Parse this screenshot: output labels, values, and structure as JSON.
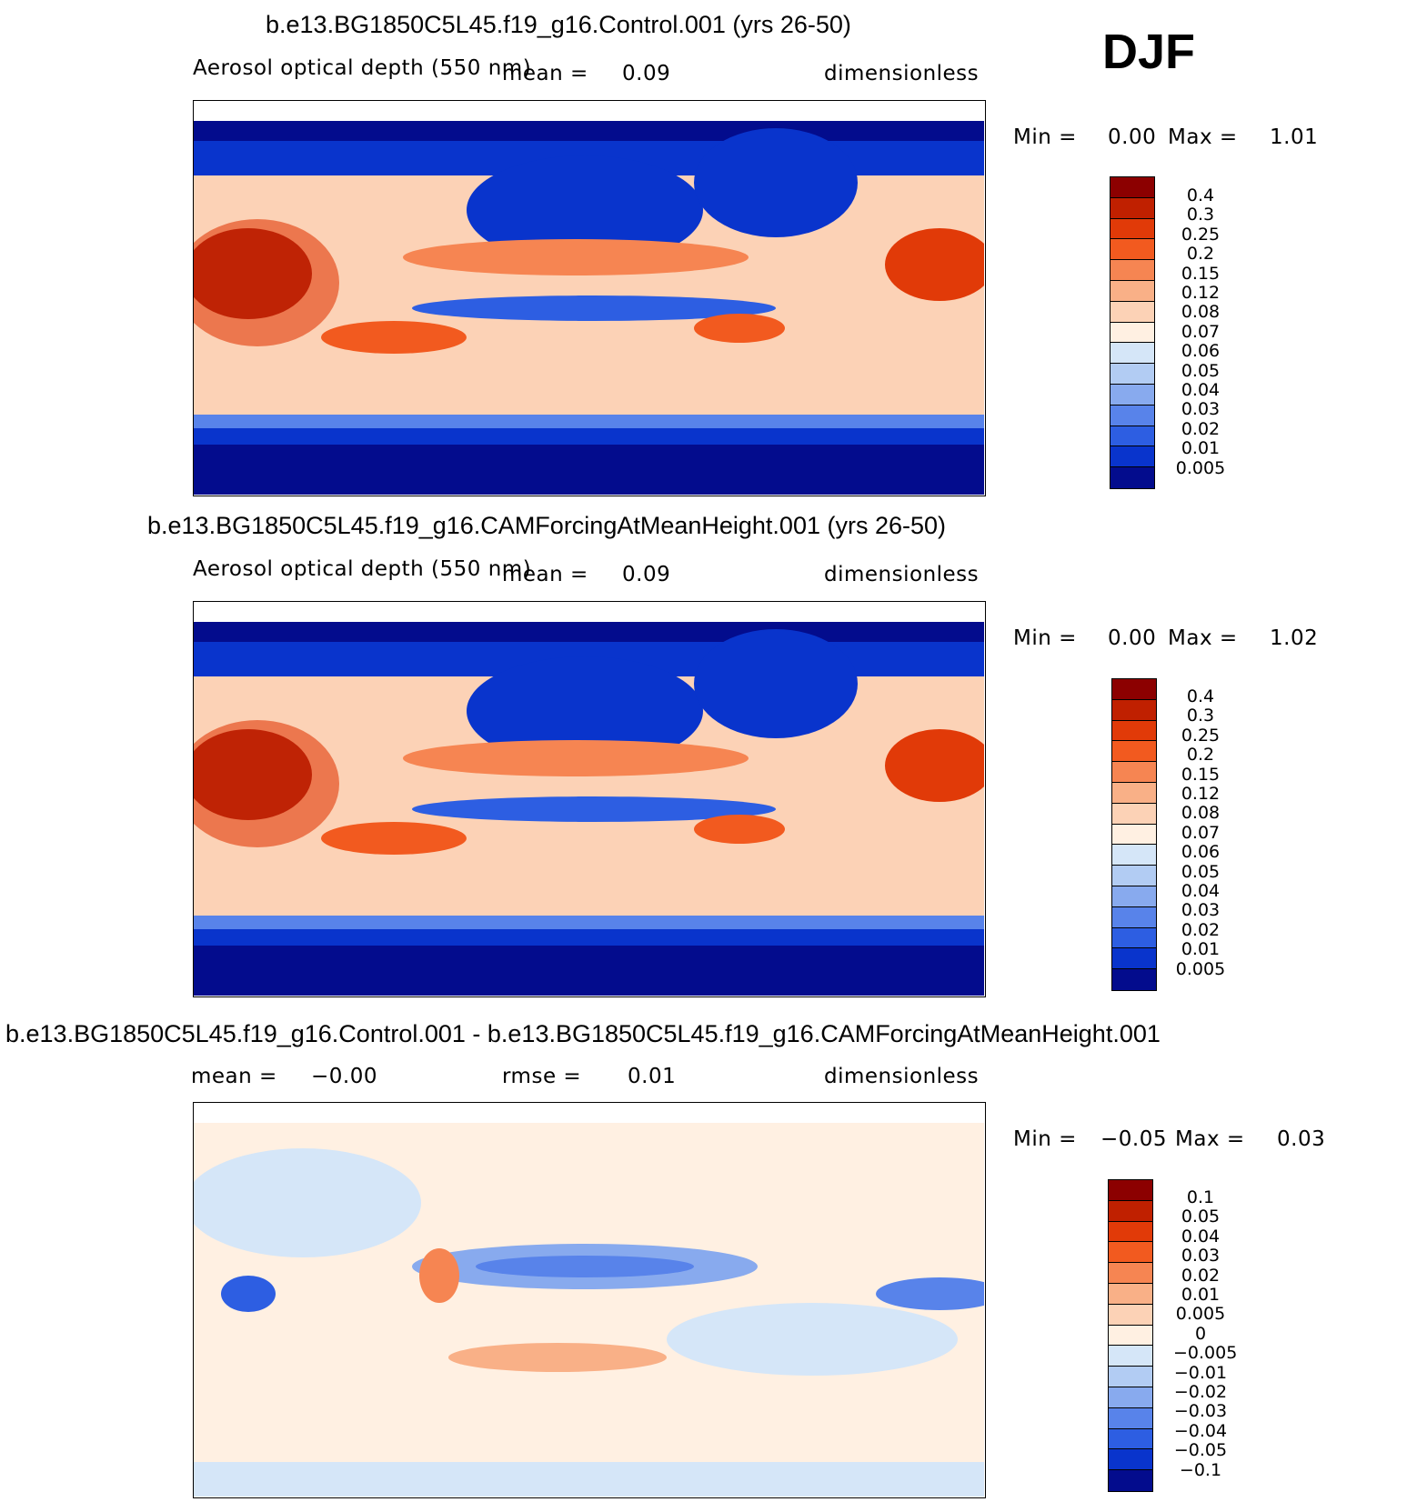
{
  "season": "DJF",
  "chart_data": [
    {
      "type": "heatmap",
      "title": "b.e13.BG1850C5L45.f19_g16.Control.001 (yrs 26-50)",
      "variable": "Aerosol optical depth (550 nm)",
      "mean_label": "mean =",
      "mean_value": "0.09",
      "units": "dimensionless",
      "min_label": "Min =",
      "min_value": "0.00",
      "max_label": "Max =",
      "max_value": "1.01",
      "levels": [
        "0.4",
        "0.3",
        "0.25",
        "0.2",
        "0.15",
        "0.12",
        "0.08",
        "0.07",
        "0.06",
        "0.05",
        "0.04",
        "0.03",
        "0.02",
        "0.01",
        "0.005"
      ],
      "colors": [
        "#8c0000",
        "#c02000",
        "#e13a08",
        "#f25a1f",
        "#f68552",
        "#f9b087",
        "#fcd2b6",
        "#fff0e2",
        "#d5e6f8",
        "#b2ccf3",
        "#88aaee",
        "#5883ea",
        "#2d5ee2",
        "#0934cc",
        "#030c8d"
      ],
      "min": 0.0,
      "max": 1.01
    },
    {
      "type": "heatmap",
      "title": "b.e13.BG1850C5L45.f19_g16.CAMForcingAtMeanHeight.001 (yrs 26-50)",
      "variable": "Aerosol optical depth (550 nm)",
      "mean_label": "mean =",
      "mean_value": "0.09",
      "units": "dimensionless",
      "min_label": "Min =",
      "min_value": "0.00",
      "max_label": "Max =",
      "max_value": "1.02",
      "levels": [
        "0.4",
        "0.3",
        "0.25",
        "0.2",
        "0.15",
        "0.12",
        "0.08",
        "0.07",
        "0.06",
        "0.05",
        "0.04",
        "0.03",
        "0.02",
        "0.01",
        "0.005"
      ],
      "colors": [
        "#8c0000",
        "#c02000",
        "#e13a08",
        "#f25a1f",
        "#f68552",
        "#f9b087",
        "#fcd2b6",
        "#fff0e2",
        "#d5e6f8",
        "#b2ccf3",
        "#88aaee",
        "#5883ea",
        "#2d5ee2",
        "#0934cc",
        "#030c8d"
      ],
      "min": 0.0,
      "max": 1.02
    },
    {
      "type": "heatmap",
      "title": "b.e13.BG1850C5L45.f19_g16.Control.001 - b.e13.BG1850C5L45.f19_g16.CAMForcingAtMeanHeight.001",
      "mean_label": "mean =",
      "mean_value": "−0.00",
      "rmse_label": "rmse =",
      "rmse_value": "0.01",
      "units": "dimensionless",
      "min_label": "Min =",
      "min_value": "−0.05",
      "max_label": "Max =",
      "max_value": "0.03",
      "levels": [
        "0.1",
        "0.05",
        "0.04",
        "0.03",
        "0.02",
        "0.01",
        "0.005",
        "0",
        "−0.005",
        "−0.01",
        "−0.02",
        "−0.03",
        "−0.04",
        "−0.05",
        "−0.1"
      ],
      "colors": [
        "#8c0000",
        "#c02000",
        "#e13a08",
        "#f25a1f",
        "#f68552",
        "#f9b087",
        "#fcd2b6",
        "#fff0e2",
        "#d5e6f8",
        "#b2ccf3",
        "#88aaee",
        "#5883ea",
        "#2d5ee2",
        "#0934cc",
        "#030c8d"
      ],
      "min": -0.05,
      "max": 0.03
    }
  ]
}
